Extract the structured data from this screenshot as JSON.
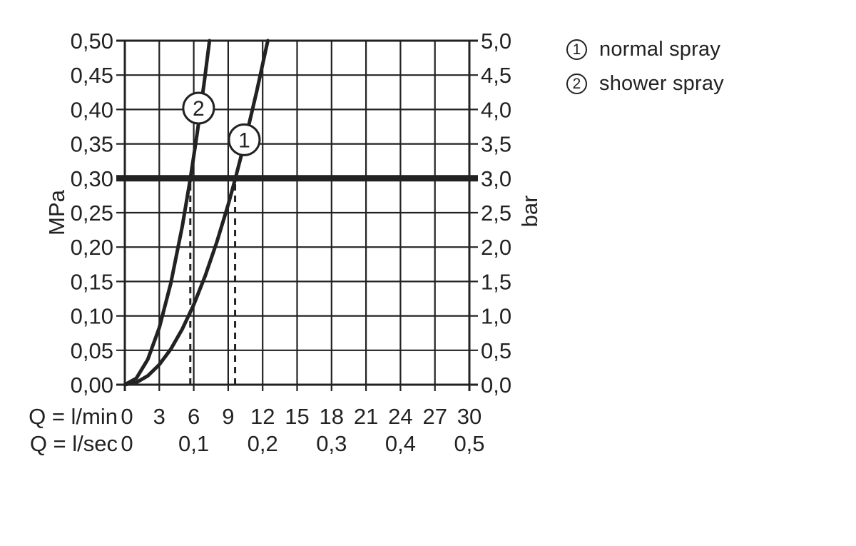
{
  "legend": {
    "items": [
      {
        "num": "1",
        "label": "normal spray"
      },
      {
        "num": "2",
        "label": "shower spray"
      }
    ]
  },
  "chart_data": {
    "type": "line",
    "title": "",
    "colors": {
      "ink": "#222222",
      "background": "#ffffff"
    },
    "grid": "on",
    "x_axis": {
      "range": [
        0,
        30
      ],
      "grid_step": 3,
      "rows": [
        {
          "prefix": "Q = l/min",
          "ticks": [
            {
              "q": 0,
              "t": "0"
            },
            {
              "q": 3,
              "t": "3"
            },
            {
              "q": 6,
              "t": "6"
            },
            {
              "q": 9,
              "t": "9"
            },
            {
              "q": 12,
              "t": "12"
            },
            {
              "q": 15,
              "t": "15"
            },
            {
              "q": 18,
              "t": "18"
            },
            {
              "q": 21,
              "t": "21"
            },
            {
              "q": 24,
              "t": "24"
            },
            {
              "q": 27,
              "t": "27"
            },
            {
              "q": 30,
              "t": "30"
            }
          ]
        },
        {
          "prefix": "Q = l/sec",
          "ticks": [
            {
              "q": 0,
              "t": "0"
            },
            {
              "q": 6,
              "t": "0,1"
            },
            {
              "q": 12,
              "t": "0,2"
            },
            {
              "q": 18,
              "t": "0,3"
            },
            {
              "q": 24,
              "t": "0,4"
            },
            {
              "q": 30,
              "t": "0,5"
            }
          ]
        }
      ]
    },
    "y_axis": {
      "left_unit": "MPa",
      "right_unit": "bar",
      "range_mpa": [
        0,
        0.5
      ],
      "step_mpa": 0.05,
      "ticks": [
        {
          "p": 0.5,
          "mpa": "0,50",
          "bar": "5,0"
        },
        {
          "p": 0.45,
          "mpa": "0,45",
          "bar": "4,5"
        },
        {
          "p": 0.4,
          "mpa": "0,40",
          "bar": "4,0"
        },
        {
          "p": 0.35,
          "mpa": "0,35",
          "bar": "3,5"
        },
        {
          "p": 0.3,
          "mpa": "0,30",
          "bar": "3,0"
        },
        {
          "p": 0.25,
          "mpa": "0,25",
          "bar": "2,5"
        },
        {
          "p": 0.2,
          "mpa": "0,20",
          "bar": "2,0"
        },
        {
          "p": 0.15,
          "mpa": "0,15",
          "bar": "1,5"
        },
        {
          "p": 0.1,
          "mpa": "0,10",
          "bar": "1,0"
        },
        {
          "p": 0.05,
          "mpa": "0,05",
          "bar": "0,5"
        },
        {
          "p": 0.0,
          "mpa": "0,00",
          "bar": "0,0"
        }
      ]
    },
    "reference_line": {
      "p_mpa": 0.3,
      "p_bar": 3.0
    },
    "droplines": [
      {
        "q": 5.7
      },
      {
        "q": 9.6
      }
    ],
    "series": [
      {
        "name": "normal spray",
        "marker": "1",
        "marker_at": {
          "q": 10.4,
          "p": 0.356
        },
        "flow_at_3bar_lmin": 9.6,
        "points": [
          [
            0,
            0
          ],
          [
            1,
            0.0032
          ],
          [
            2,
            0.0129
          ],
          [
            3,
            0.0291
          ],
          [
            4,
            0.0517
          ],
          [
            5,
            0.0808
          ],
          [
            6,
            0.1163
          ],
          [
            7,
            0.1583
          ],
          [
            8,
            0.2068
          ],
          [
            9,
            0.2617
          ],
          [
            9.63,
            0.3
          ],
          [
            10.5,
            0.3563
          ],
          [
            11.5,
            0.4274
          ],
          [
            12.45,
            0.5
          ]
        ]
      },
      {
        "name": "shower spray",
        "marker": "2",
        "marker_at": {
          "q": 6.42,
          "p": 0.402
        },
        "flow_at_3bar_lmin": 5.7,
        "points": [
          [
            0,
            0
          ],
          [
            1,
            0.0092
          ],
          [
            2,
            0.0368
          ],
          [
            3,
            0.0828
          ],
          [
            4,
            0.1472
          ],
          [
            5,
            0.23
          ],
          [
            5.71,
            0.3
          ],
          [
            6.3,
            0.3652
          ],
          [
            6.9,
            0.438
          ],
          [
            7.37,
            0.5
          ]
        ]
      }
    ]
  }
}
